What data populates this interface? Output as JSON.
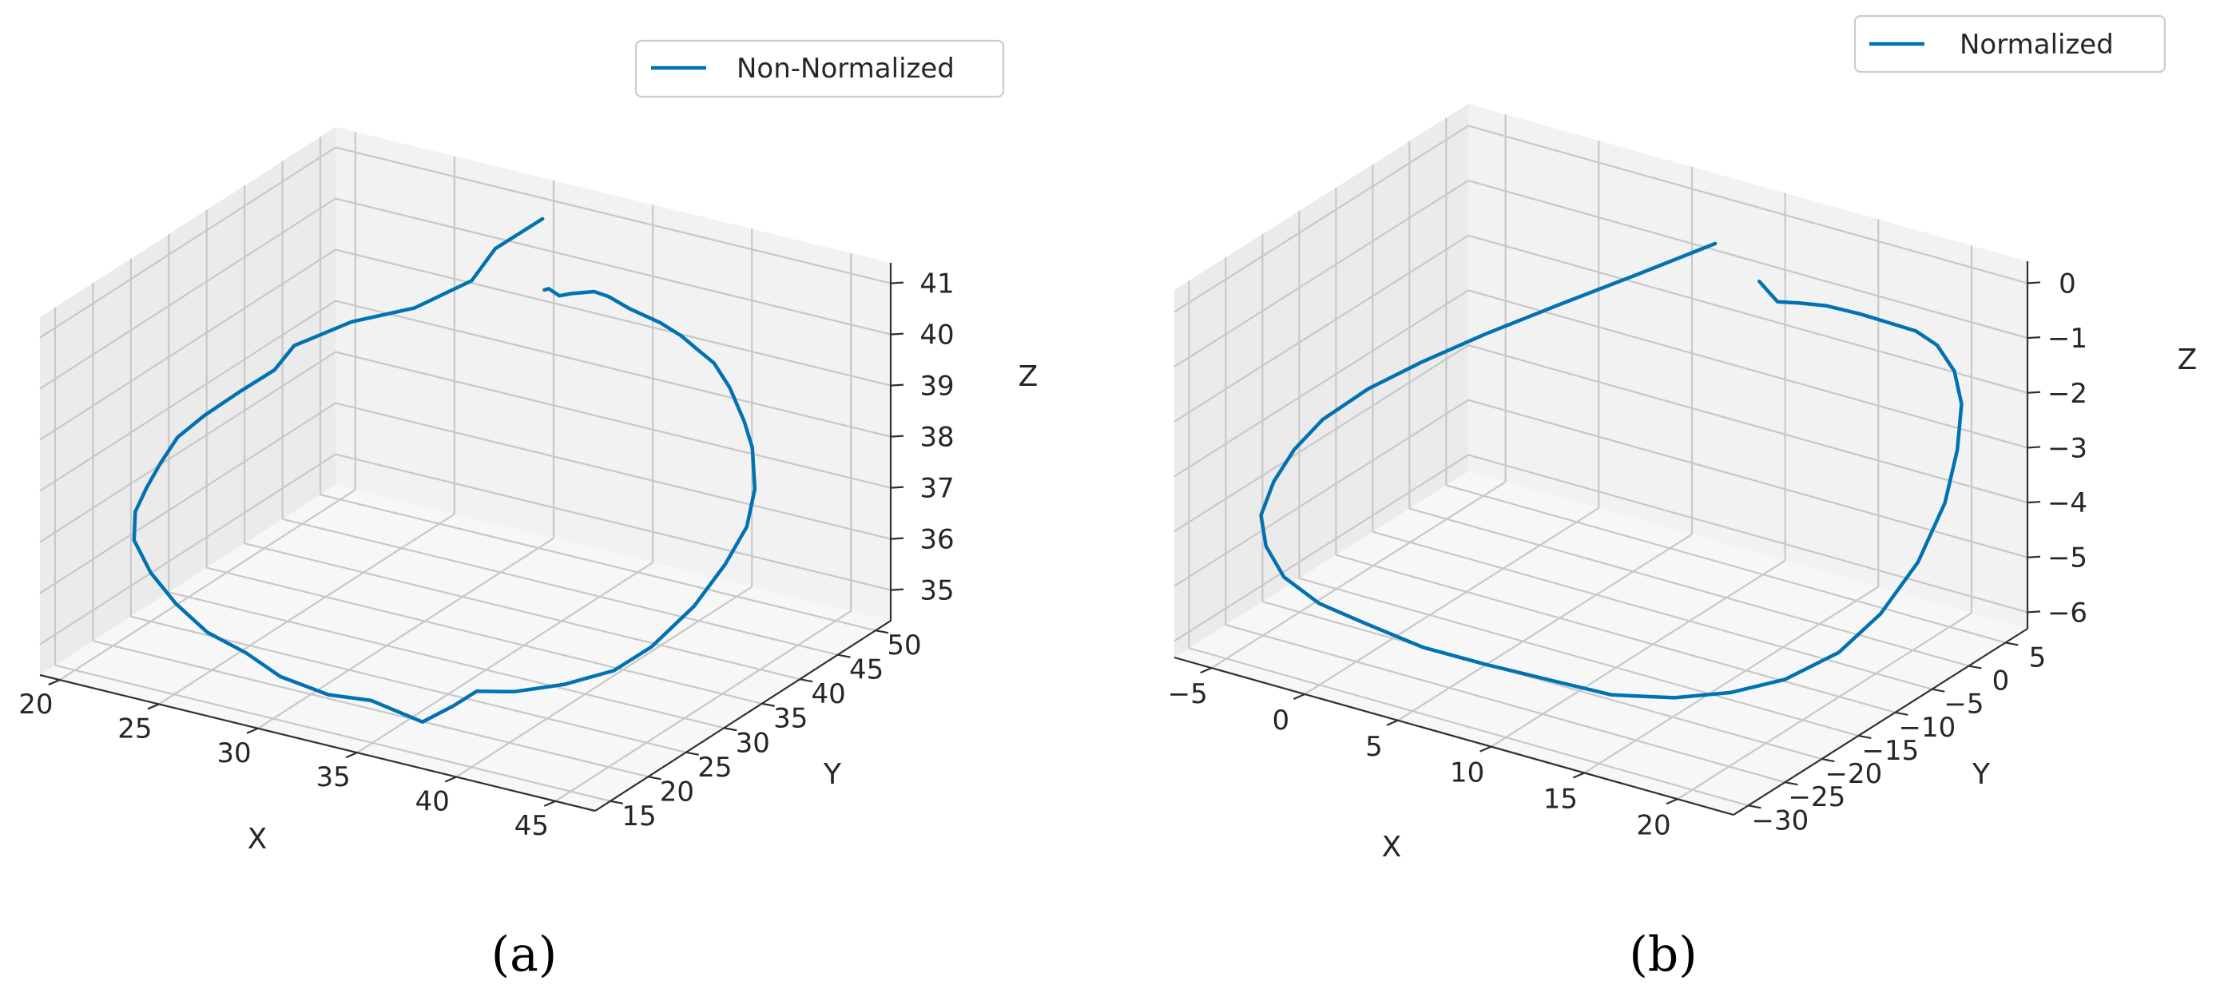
{
  "colors": {
    "series": "#0072b2",
    "background": "#ffffff"
  },
  "chart_data": [
    {
      "type": "line",
      "projection": "3d",
      "panel_caption": "(a)",
      "xlabel": "X",
      "ylabel": "Y",
      "zlabel": "Z",
      "xticks": [
        "20",
        "25",
        "30",
        "35",
        "40",
        "45"
      ],
      "yticks": [
        "15",
        "20",
        "25",
        "30",
        "35",
        "40",
        "45",
        "50"
      ],
      "zticks": [
        "35",
        "36",
        "37",
        "38",
        "39",
        "40",
        "41"
      ],
      "xlim": [
        19,
        47
      ],
      "ylim": [
        13,
        52
      ],
      "zlim": [
        34.4,
        41.4
      ],
      "grid": true,
      "legend_position": "top-right",
      "series": [
        {
          "name": "Non-Normalized",
          "color": "#0072b2",
          "x": [
            31.2,
            30.0,
            29.8,
            28.1,
            26.0,
            24.1,
            23.6,
            22.4,
            21.3,
            20.4,
            20.1,
            19.8,
            19.6,
            20.0,
            21.3,
            23.1,
            25.3,
            27.6,
            29.9,
            32.4,
            34.3,
            36.8,
            37.6,
            38.2,
            39.6,
            41.6,
            43.2,
            44.1,
            44.8,
            45.3,
            45.4,
            45.0,
            44.3,
            43.4,
            42.4,
            41.3,
            40.5,
            39.4,
            38.2,
            36.6,
            35.4,
            34.6,
            33.3,
            32.7,
            32.2,
            32.4
          ],
          "y": [
            47.4,
            44.3,
            41.7,
            38.6,
            35.8,
            33.2,
            31.9,
            30.4,
            28.7,
            27.5,
            26.0,
            25.0,
            24.0,
            22.8,
            21.6,
            20.2,
            18.6,
            17.7,
            16.2,
            16.0,
            16.7,
            16.9,
            18.9,
            20.4,
            21.7,
            23.1,
            25.4,
            28.0,
            31.8,
            34.6,
            37.2,
            39.3,
            40.8,
            42.1,
            42.8,
            43.6,
            43.5,
            44.2,
            44.6,
            44.8,
            45.1,
            45.3,
            45.7,
            45.7,
            45.6,
            44.5
          ],
          "z": [
            41.2,
            40.8,
            40.4,
            40.0,
            39.8,
            39.4,
            39.0,
            38.6,
            38.2,
            37.8,
            37.4,
            37.0,
            36.6,
            36.2,
            35.8,
            35.5,
            35.3,
            35.2,
            35.1,
            35.0,
            35.0,
            34.8,
            35.0,
            35.2,
            35.2,
            35.4,
            35.6,
            35.9,
            36.4,
            37.0,
            37.5,
            38.0,
            38.6,
            38.9,
            39.4,
            39.7,
            39.9,
            40.0,
            40.1,
            40.2,
            40.3,
            40.3,
            40.1,
            40.0,
            40.1,
            40.2
          ]
        }
      ]
    },
    {
      "type": "line",
      "projection": "3d",
      "panel_caption": "(b)",
      "xlabel": "X",
      "ylabel": "Y",
      "zlabel": "Z",
      "xticks": [
        "−5",
        "0",
        "5",
        "10",
        "15",
        "20"
      ],
      "yticks": [
        "−30",
        "−25",
        "−20",
        "−15",
        "−10",
        "−5",
        "0",
        "5"
      ],
      "zticks": [
        "−6",
        "−5",
        "−4",
        "−3",
        "−2",
        "−1",
        "0"
      ],
      "xlim": [
        -7,
        23
      ],
      "ylim": [
        -32,
        8
      ],
      "zlim": [
        -6.3,
        0.4
      ],
      "grid": true,
      "legend_position": "top-right",
      "series": [
        {
          "name": "Normalized",
          "color": "#0072b2",
          "x": [
            9.4,
            7.0,
            4.6,
            2.3,
            0.3,
            -1.4,
            -2.9,
            -3.8,
            -4.3,
            -4.4,
            -3.7,
            -2.5,
            -0.6,
            1.6,
            4.2,
            6.9,
            9.6,
            12.4,
            14.9,
            17.0,
            18.9,
            20.6,
            21.5,
            22.1,
            22.2,
            21.8,
            21.2,
            20.3,
            19.1,
            17.8,
            16.3,
            14.7,
            13.0,
            11.5,
            10.3,
            9.4
          ],
          "y": [
            0.0,
            -4.8,
            -9.2,
            -13.4,
            -16.9,
            -19.8,
            -22.2,
            -23.8,
            -25.3,
            -26.8,
            -27.9,
            -28.5,
            -28.5,
            -27.9,
            -26.6,
            -24.9,
            -22.9,
            -21.7,
            -19.5,
            -17.2,
            -14.6,
            -11.6,
            -8.2,
            -4.6,
            -1.2,
            1.5,
            3.6,
            4.9,
            5.6,
            6.0,
            6.1,
            6.2,
            6.0,
            6.1,
            6.2,
            6.0
          ],
          "z": [
            0.1,
            -0.3,
            -0.7,
            -1.1,
            -1.5,
            -1.9,
            -2.4,
            -2.9,
            -3.4,
            -3.9,
            -4.3,
            -4.7,
            -5.0,
            -5.2,
            -5.5,
            -5.7,
            -5.9,
            -6.0,
            -6.0,
            -5.9,
            -5.7,
            -5.3,
            -4.8,
            -4.1,
            -3.3,
            -2.6,
            -2.0,
            -1.6,
            -1.3,
            -1.2,
            -1.2,
            -1.2,
            -1.2,
            -1.3,
            -1.4,
            -1.1
          ]
        }
      ]
    }
  ]
}
